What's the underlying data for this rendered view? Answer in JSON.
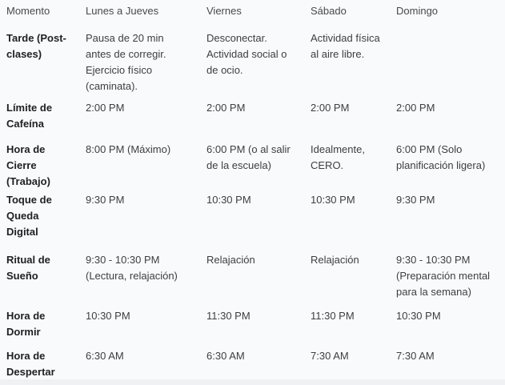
{
  "table": {
    "columns": [
      "Momento",
      "Lunes a Jueves",
      "Viernes",
      "Sábado",
      "Domingo"
    ],
    "rows": [
      {
        "label": "Tarde (Post-clases)",
        "cells": [
          "Pausa de 20 min antes de corregir. Ejercicio físico (caminata).",
          "Desconectar. Actividad social o de ocio.",
          "Actividad física al aire libre.",
          ""
        ]
      },
      {
        "label": "Límite de Cafeína",
        "cells": [
          "2:00 PM",
          "2:00 PM",
          "2:00 PM",
          "2:00 PM"
        ]
      },
      {
        "label": "Hora de Cierre (Trabajo)",
        "cells": [
          "8:00 PM (Máximo)",
          "6:00 PM (o al salir de la escuela)",
          "Idealmente, CERO.",
          "6:00 PM (Solo planificación ligera)"
        ]
      },
      {
        "label": "Toque de Queda Digital",
        "cells": [
          "9:30 PM",
          "10:30 PM",
          "10:30 PM",
          "9:30 PM"
        ]
      },
      {
        "label": "Ritual de Sueño",
        "cells": [
          "9:30 - 10:30 PM (Lectura, relajación)",
          "Relajación",
          "Relajación",
          "9:30 - 10:30 PM (Preparación mental para la semana)"
        ]
      },
      {
        "label": "Hora de Dormir",
        "cells": [
          "10:30 PM",
          "11:30 PM",
          "11:30 PM",
          "10:30 PM"
        ]
      },
      {
        "label": "Hora de Despertar",
        "cells": [
          "6:30 AM",
          "6:30 AM",
          "7:30 AM",
          "7:30 AM"
        ]
      }
    ]
  },
  "colors": {
    "background": "#f9fafc",
    "header_text": "#47494d",
    "body_text": "#3c4043",
    "label_text": "#202124",
    "bottom_strip": "#eff1f4"
  }
}
